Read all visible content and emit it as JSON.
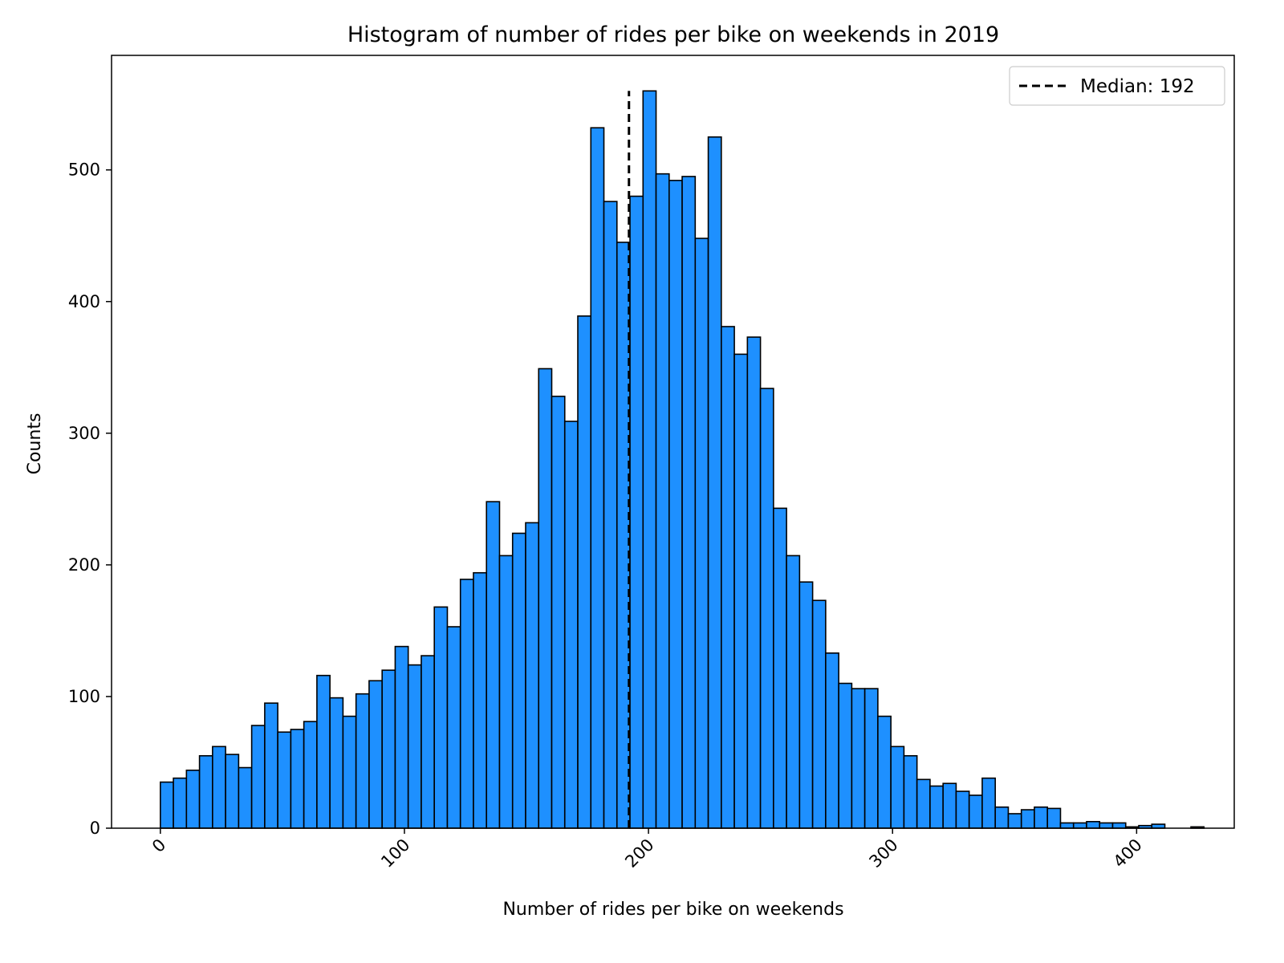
{
  "chart_data": {
    "type": "bar",
    "title": "Histogram of number of rides per bike on weekends in 2019",
    "xlabel": "Number of rides per bike on weekends",
    "ylabel": "Counts",
    "xlim": [
      -20,
      440
    ],
    "ylim": [
      0,
      587
    ],
    "xticks": [
      0,
      100,
      200,
      300,
      400
    ],
    "xtick_labels": [
      "0",
      "100",
      "200",
      "300",
      "400"
    ],
    "yticks": [
      0,
      100,
      200,
      300,
      400,
      500
    ],
    "ytick_labels": [
      "0",
      "100",
      "200",
      "300",
      "400",
      "500"
    ],
    "grid": false,
    "bar_color": "#1e90ff",
    "edge_color": "#000000",
    "bin_start": 0,
    "bin_width": 5.345,
    "values": [
      35,
      38,
      44,
      55,
      62,
      56,
      46,
      78,
      95,
      73,
      75,
      81,
      116,
      99,
      85,
      102,
      112,
      120,
      138,
      124,
      131,
      168,
      153,
      189,
      194,
      248,
      207,
      224,
      232,
      349,
      328,
      309,
      389,
      532,
      476,
      445,
      480,
      560,
      497,
      492,
      495,
      448,
      525,
      381,
      360,
      373,
      334,
      243,
      207,
      187,
      173,
      133,
      110,
      106,
      106,
      85,
      62,
      55,
      37,
      32,
      34,
      28,
      25,
      38,
      16,
      11,
      14,
      16,
      15,
      4,
      4,
      5,
      4,
      4,
      1,
      2,
      3,
      0,
      0,
      1
    ],
    "median": {
      "value": 192,
      "label": "Median: 192",
      "ymax": 560
    },
    "legend": {
      "position": "upper right",
      "entries": [
        "Median: 192"
      ]
    }
  }
}
